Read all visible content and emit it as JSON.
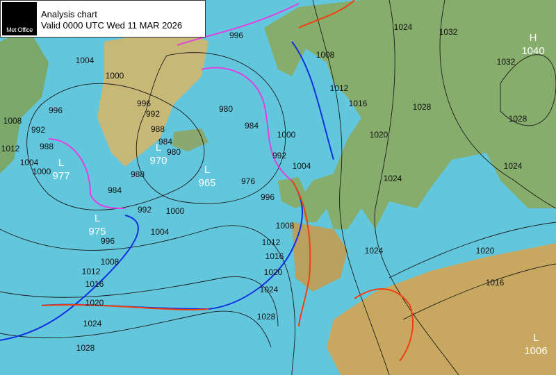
{
  "header": {
    "logo": "Met Office",
    "title": "Analysis chart",
    "valid": "Valid 0000 UTC Wed 11 MAR 2026"
  },
  "pressure_centres": [
    {
      "letter": "H",
      "value": 1040
    },
    {
      "letter": "L",
      "value": 977
    },
    {
      "letter": "L",
      "value": 970
    },
    {
      "letter": "L",
      "value": 965
    },
    {
      "letter": "L",
      "value": 975
    },
    {
      "letter": "L",
      "value": 1006
    }
  ],
  "isobar_labels": [
    996,
    1004,
    1000,
    996,
    1008,
    992,
    988,
    1012,
    1004,
    1000,
    996,
    992,
    988,
    984,
    980,
    980,
    984,
    1000,
    992,
    996,
    1004,
    976,
    984,
    988,
    992,
    1004,
    1000,
    996,
    1008,
    1012,
    1016,
    1020,
    1024,
    1028,
    1008,
    1012,
    1016,
    1020,
    1024,
    1028,
    1008,
    1012,
    1016,
    1020,
    1024,
    1024,
    1032,
    1028,
    1028,
    1032,
    1024,
    1024,
    1020,
    1016
  ]
}
